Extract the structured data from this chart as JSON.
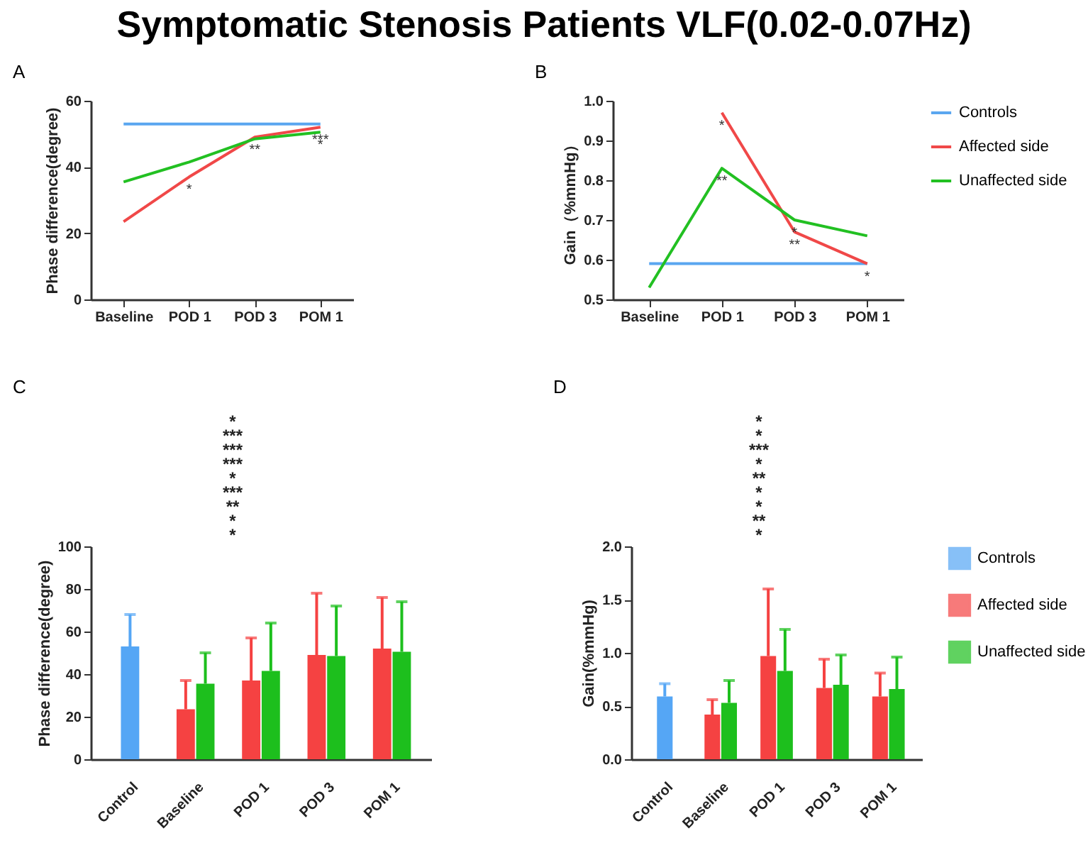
{
  "chart_data": [
    {
      "type": "line",
      "title": "Symptomatic Stenosis Patients VLF(0.02-0.07Hz)",
      "subtitle": "A",
      "ylabel": "Phase difference(degree)",
      "categories": [
        "Baseline",
        "POD 1",
        "POD 3",
        "POM 1"
      ],
      "series": [
        {
          "color": "#5aa6f0",
          "values": [
            53,
            53,
            53,
            53
          ]
        },
        {
          "color": "#f04848",
          "values": [
            23.5,
            37,
            49,
            52
          ]
        },
        {
          "color": "#22c022",
          "values": [
            35.5,
            41.5,
            48.5,
            50.5
          ]
        }
      ],
      "ylim": [
        0,
        60
      ],
      "yticks": [
        0,
        20,
        40,
        60
      ],
      "grid": false,
      "legend": false,
      "annotations": [
        {
          "text": "*",
          "x": "POD 1",
          "y": 37
        },
        {
          "text": "**",
          "x": "POD 3",
          "y": 49
        },
        {
          "text": "***",
          "x": "POM 1",
          "y": 52
        },
        {
          "text": "*",
          "x": "POM 1",
          "y": 50.5
        }
      ]
    },
    {
      "type": "line",
      "subtitle": "B",
      "ylabel": "Gain（%mmHg）",
      "categories": [
        "Baseline",
        "POD 1",
        "POD 3",
        "POM 1"
      ],
      "series": [
        {
          "name": "Controls",
          "color": "#5aa6f0",
          "values": [
            0.59,
            0.59,
            0.59,
            0.59
          ]
        },
        {
          "name": "Affected side",
          "color": "#f04848",
          "values": [
            null,
            0.97,
            0.67,
            0.59
          ]
        },
        {
          "name": "Unaffected side",
          "color": "#22c022",
          "values": [
            0.53,
            0.83,
            0.7,
            0.66
          ]
        }
      ],
      "ylim": [
        0.5,
        1.0
      ],
      "yticks": [
        0.5,
        0.6,
        0.7,
        0.8,
        0.9,
        {
          "value": 1,
          "label": "1.0"
        }
      ],
      "grid": false,
      "legend": "right",
      "annotations": [
        {
          "text": "*",
          "x": "POD 1",
          "y": 0.97
        },
        {
          "text": "**",
          "x": "POD 1",
          "y": 0.83
        },
        {
          "text": "*",
          "x": "POD 3",
          "y": 0.7
        },
        {
          "text": "**",
          "x": "POD 3",
          "y": 0.67
        },
        {
          "text": "*",
          "x": "POM 1",
          "y": 0.59
        }
      ]
    },
    {
      "type": "bar",
      "subtitle": "C",
      "ylabel": "Phase difference(degree)",
      "categories": [
        "Control",
        "Baseline",
        "POD 1",
        "POD 3",
        "POM 1"
      ],
      "series": [
        {
          "color": "#55a6f5",
          "values": [
            53,
            null,
            null,
            null,
            null
          ],
          "errors": [
            [
              53,
              68
            ],
            null,
            null,
            null,
            null
          ]
        },
        {
          "color": "#f54242",
          "values": [
            null,
            23.5,
            37,
            49,
            52
          ],
          "errors": [
            null,
            [
              23.5,
              37
            ],
            [
              37,
              57
            ],
            [
              49,
              78
            ],
            [
              52,
              76
            ]
          ]
        },
        {
          "color": "#1dbf1d",
          "values": [
            null,
            35.5,
            41.5,
            48.5,
            50.5
          ],
          "errors": [
            null,
            [
              35.5,
              50
            ],
            [
              41.5,
              64
            ],
            [
              48.5,
              72
            ],
            [
              50.5,
              74
            ]
          ]
        }
      ],
      "ylim": [
        0,
        100
      ],
      "yticks": [
        0,
        20,
        40,
        60,
        80,
        100
      ],
      "grid": false,
      "legend": false,
      "annotations": [
        "*",
        "***",
        "***",
        "***",
        "*",
        "***",
        "**",
        "*",
        "*"
      ]
    },
    {
      "type": "bar",
      "subtitle": "D",
      "ylabel": "Gain(%mmHg)",
      "categories": [
        "Control",
        "Baseline",
        "POD 1",
        "POD 3",
        "POM 1"
      ],
      "series": [
        {
          "name": "Controls",
          "color": "#55a6f5",
          "values": [
            0.59,
            null,
            null,
            null,
            null
          ],
          "errors": [
            [
              0.59,
              0.71
            ],
            null,
            null,
            null,
            null
          ]
        },
        {
          "name": "Affected side",
          "color": "#f54242",
          "values": [
            null,
            0.42,
            0.97,
            0.67,
            0.59
          ],
          "errors": [
            null,
            [
              0.42,
              0.56
            ],
            [
              0.97,
              1.6
            ],
            [
              0.67,
              0.94
            ],
            [
              0.59,
              0.81
            ]
          ]
        },
        {
          "name": "Unaffected side",
          "color": "#1dbf1d",
          "values": [
            null,
            0.53,
            0.83,
            0.7,
            0.66
          ],
          "errors": [
            null,
            [
              0.53,
              0.74
            ],
            [
              0.83,
              1.22
            ],
            [
              0.7,
              0.98
            ],
            [
              0.66,
              0.96
            ]
          ]
        }
      ],
      "ylim": [
        0,
        2
      ],
      "yticks": [
        {
          "value": 0,
          "label": "0.0"
        },
        0.5,
        {
          "value": 1,
          "label": "1.0"
        },
        1.5,
        {
          "value": 2,
          "label": "2.0"
        }
      ],
      "grid": false,
      "legend": "right",
      "annotations": [
        "*",
        "*",
        "***",
        "*",
        "**",
        "*",
        "*",
        "**",
        "*"
      ]
    }
  ]
}
